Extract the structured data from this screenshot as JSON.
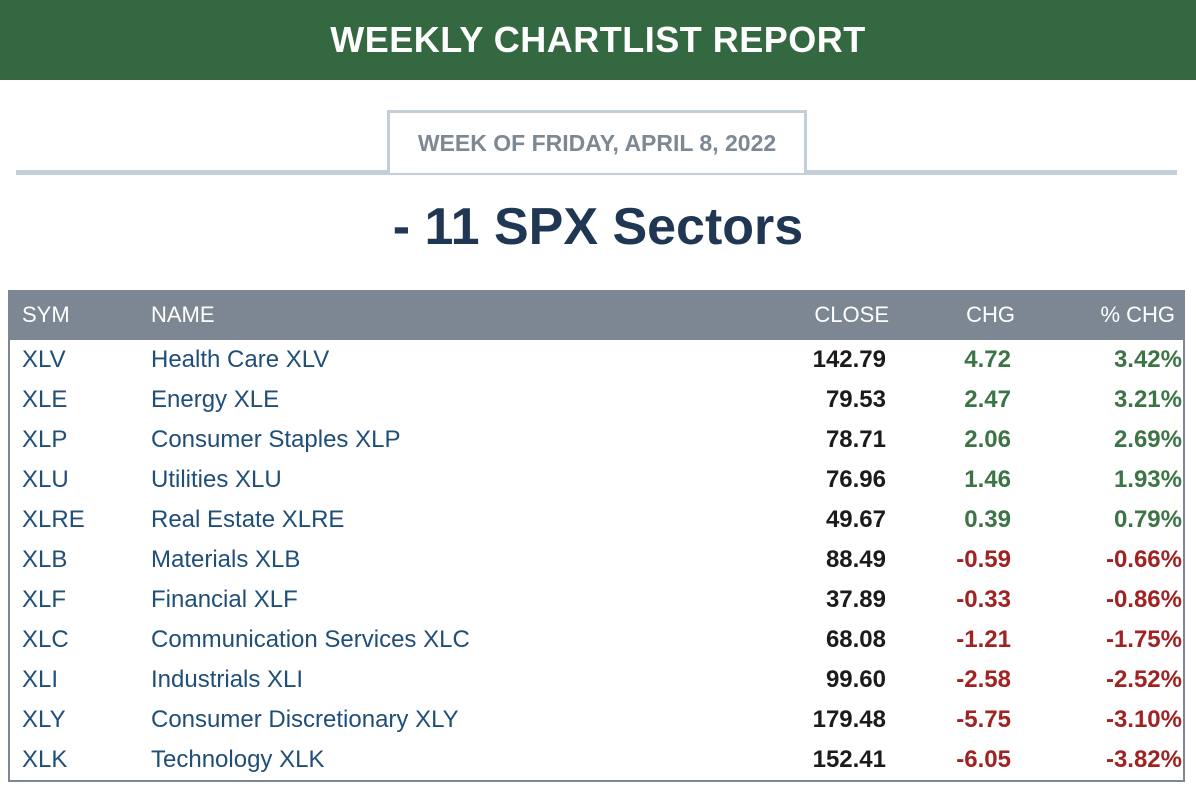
{
  "header": {
    "banner_title": "WEEKLY CHARTLIST REPORT",
    "week_label": "WEEK OF FRIDAY, APRIL 8, 2022",
    "page_title": "- 11 SPX Sectors",
    "colors": {
      "banner": "#346841",
      "positive": "#3c7446",
      "negative": "#a12222",
      "link": "#1f4e79",
      "table_header": "#7d8793"
    }
  },
  "table": {
    "columns": {
      "sym": "SYM",
      "name": "NAME",
      "close": "CLOSE",
      "chg": "CHG",
      "pct": "% CHG"
    },
    "rows": [
      {
        "sym": "XLV",
        "name": "Health Care XLV",
        "close": "142.79",
        "chg": "4.72",
        "pct": "3.42%",
        "dir": "pos"
      },
      {
        "sym": "XLE",
        "name": "Energy XLE",
        "close": "79.53",
        "chg": "2.47",
        "pct": "3.21%",
        "dir": "pos"
      },
      {
        "sym": "XLP",
        "name": "Consumer Staples XLP",
        "close": "78.71",
        "chg": "2.06",
        "pct": "2.69%",
        "dir": "pos"
      },
      {
        "sym": "XLU",
        "name": "Utilities XLU",
        "close": "76.96",
        "chg": "1.46",
        "pct": "1.93%",
        "dir": "pos"
      },
      {
        "sym": "XLRE",
        "name": "Real Estate XLRE",
        "close": "49.67",
        "chg": "0.39",
        "pct": "0.79%",
        "dir": "pos"
      },
      {
        "sym": "XLB",
        "name": "Materials XLB",
        "close": "88.49",
        "chg": "-0.59",
        "pct": "-0.66%",
        "dir": "neg"
      },
      {
        "sym": "XLF",
        "name": "Financial XLF",
        "close": "37.89",
        "chg": "-0.33",
        "pct": "-0.86%",
        "dir": "neg"
      },
      {
        "sym": "XLC",
        "name": "Communication Services XLC",
        "close": "68.08",
        "chg": "-1.21",
        "pct": "-1.75%",
        "dir": "neg"
      },
      {
        "sym": "XLI",
        "name": "Industrials XLI",
        "close": "99.60",
        "chg": "-2.58",
        "pct": "-2.52%",
        "dir": "neg"
      },
      {
        "sym": "XLY",
        "name": "Consumer Discretionary XLY",
        "close": "179.48",
        "chg": "-5.75",
        "pct": "-3.10%",
        "dir": "neg"
      },
      {
        "sym": "XLK",
        "name": "Technology XLK",
        "close": "152.41",
        "chg": "-6.05",
        "pct": "-3.82%",
        "dir": "neg"
      }
    ]
  }
}
